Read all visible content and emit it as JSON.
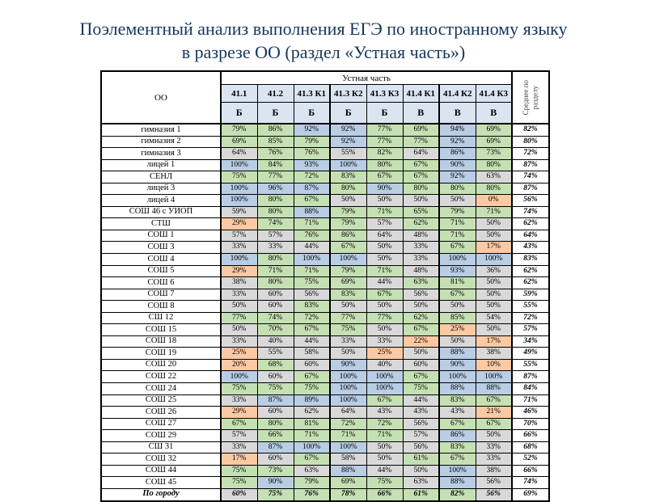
{
  "title": {
    "line1": "Поэлементный анализ выполнения ЕГЭ по иностранному языку",
    "line2": "в разрезе ОО (раздел «Устная часть»)"
  },
  "table": {
    "corner_label": "ОО",
    "group_header": "Устная часть",
    "avg_header": "Среднее по\nразделу",
    "columns": [
      "41.1",
      "41.2",
      "41.3 К1",
      "41.3 К2",
      "41.3 К3",
      "41.4 К1",
      "41.4 К2",
      "41.4 К3"
    ],
    "levels": [
      "Б",
      "Б",
      "Б",
      "Б",
      "Б",
      "В",
      "В",
      "В"
    ],
    "fill_colors": {
      "g": "#c5e0b3",
      "b": "#b9cde5",
      "y": "#d9d9d9",
      "o": "#fbc9a4",
      "w": "#ffffff"
    },
    "rows": [
      {
        "name": "гимназия 1",
        "values": [
          "79%",
          "86%",
          "92%",
          "92%",
          "77%",
          "69%",
          "94%",
          "69%"
        ],
        "fills": [
          "g",
          "g",
          "b",
          "b",
          "g",
          "g",
          "b",
          "g"
        ],
        "avg": "82%"
      },
      {
        "name": "гимназия 2",
        "values": [
          "69%",
          "85%",
          "79%",
          "92%",
          "77%",
          "77%",
          "92%",
          "69%"
        ],
        "fills": [
          "g",
          "g",
          "g",
          "b",
          "g",
          "g",
          "b",
          "g"
        ],
        "avg": "80%"
      },
      {
        "name": "гимназия 3",
        "values": [
          "64%",
          "76%",
          "76%",
          "55%",
          "82%",
          "64%",
          "86%",
          "73%"
        ],
        "fills": [
          "y",
          "g",
          "g",
          "y",
          "g",
          "y",
          "b",
          "g"
        ],
        "avg": "72%"
      },
      {
        "name": "лицей 1",
        "values": [
          "100%",
          "84%",
          "93%",
          "100%",
          "80%",
          "67%",
          "90%",
          "80%"
        ],
        "fills": [
          "b",
          "g",
          "b",
          "b",
          "g",
          "g",
          "b",
          "g"
        ],
        "avg": "87%"
      },
      {
        "name": "СЕНЛ",
        "values": [
          "75%",
          "77%",
          "72%",
          "83%",
          "67%",
          "67%",
          "92%",
          "63%"
        ],
        "fills": [
          "g",
          "g",
          "g",
          "g",
          "g",
          "g",
          "b",
          "y"
        ],
        "avg": "74%"
      },
      {
        "name": "лицей 3",
        "values": [
          "100%",
          "96%",
          "87%",
          "80%",
          "90%",
          "80%",
          "80%",
          "80%"
        ],
        "fills": [
          "b",
          "b",
          "b",
          "g",
          "b",
          "g",
          "g",
          "g"
        ],
        "avg": "87%"
      },
      {
        "name": "лицей 4",
        "values": [
          "100%",
          "80%",
          "67%",
          "50%",
          "50%",
          "50%",
          "50%",
          "0%"
        ],
        "fills": [
          "b",
          "g",
          "g",
          "y",
          "y",
          "y",
          "y",
          "o"
        ],
        "avg": "56%"
      },
      {
        "name": "СОШ 46 с УИОП",
        "values": [
          "59%",
          "80%",
          "88%",
          "79%",
          "71%",
          "65%",
          "79%",
          "71%"
        ],
        "fills": [
          "y",
          "g",
          "b",
          "g",
          "g",
          "g",
          "g",
          "g"
        ],
        "avg": "74%"
      },
      {
        "name": "СТШ",
        "values": [
          "29%",
          "74%",
          "71%",
          "79%",
          "57%",
          "62%",
          "71%",
          "50%"
        ],
        "fills": [
          "o",
          "g",
          "g",
          "g",
          "y",
          "g",
          "g",
          "y"
        ],
        "avg": "62%"
      },
      {
        "name": "СОШ 1",
        "values": [
          "57%",
          "57%",
          "76%",
          "86%",
          "64%",
          "48%",
          "71%",
          "50%"
        ],
        "fills": [
          "y",
          "y",
          "g",
          "g",
          "y",
          "y",
          "g",
          "y"
        ],
        "avg": "64%"
      },
      {
        "name": "СОШ 3",
        "values": [
          "33%",
          "33%",
          "44%",
          "67%",
          "50%",
          "33%",
          "67%",
          "17%"
        ],
        "fills": [
          "y",
          "y",
          "y",
          "g",
          "y",
          "y",
          "g",
          "o"
        ],
        "avg": "43%"
      },
      {
        "name": "СОШ 4",
        "values": [
          "100%",
          "80%",
          "100%",
          "100%",
          "50%",
          "33%",
          "100%",
          "100%"
        ],
        "fills": [
          "b",
          "g",
          "b",
          "b",
          "y",
          "y",
          "b",
          "b"
        ],
        "avg": "83%"
      },
      {
        "name": "СОШ 5",
        "values": [
          "29%",
          "71%",
          "71%",
          "79%",
          "71%",
          "48%",
          "93%",
          "36%"
        ],
        "fills": [
          "o",
          "g",
          "g",
          "g",
          "g",
          "y",
          "b",
          "y"
        ],
        "avg": "62%"
      },
      {
        "name": "СОШ 6",
        "values": [
          "38%",
          "80%",
          "75%",
          "69%",
          "44%",
          "63%",
          "81%",
          "50%"
        ],
        "fills": [
          "y",
          "g",
          "g",
          "g",
          "y",
          "g",
          "g",
          "y"
        ],
        "avg": "62%"
      },
      {
        "name": "СОШ 7",
        "values": [
          "33%",
          "60%",
          "56%",
          "83%",
          "67%",
          "56%",
          "67%",
          "50%"
        ],
        "fills": [
          "y",
          "y",
          "y",
          "g",
          "g",
          "y",
          "g",
          "y"
        ],
        "avg": "59%"
      },
      {
        "name": "СОШ 8",
        "values": [
          "50%",
          "60%",
          "83%",
          "50%",
          "50%",
          "50%",
          "50%",
          "50%"
        ],
        "fills": [
          "y",
          "y",
          "g",
          "y",
          "y",
          "y",
          "y",
          "y"
        ],
        "avg": "55%"
      },
      {
        "name": "СШ 12",
        "values": [
          "77%",
          "74%",
          "72%",
          "77%",
          "77%",
          "62%",
          "85%",
          "54%"
        ],
        "fills": [
          "g",
          "g",
          "g",
          "g",
          "g",
          "g",
          "g",
          "y"
        ],
        "avg": "72%"
      },
      {
        "name": "СОШ 15",
        "values": [
          "50%",
          "70%",
          "67%",
          "75%",
          "50%",
          "67%",
          "25%",
          "50%"
        ],
        "fills": [
          "y",
          "g",
          "g",
          "g",
          "y",
          "g",
          "o",
          "y"
        ],
        "avg": "57%"
      },
      {
        "name": "СОШ 18",
        "values": [
          "33%",
          "40%",
          "44%",
          "33%",
          "33%",
          "22%",
          "50%",
          "17%"
        ],
        "fills": [
          "y",
          "y",
          "y",
          "y",
          "y",
          "o",
          "y",
          "o"
        ],
        "avg": "34%"
      },
      {
        "name": "СОШ 19",
        "values": [
          "25%",
          "55%",
          "58%",
          "50%",
          "25%",
          "50%",
          "88%",
          "38%"
        ],
        "fills": [
          "o",
          "y",
          "y",
          "y",
          "o",
          "y",
          "b",
          "y"
        ],
        "avg": "49%"
      },
      {
        "name": "СОШ 20",
        "values": [
          "20%",
          "68%",
          "60%",
          "90%",
          "40%",
          "60%",
          "90%",
          "10%"
        ],
        "fills": [
          "o",
          "g",
          "y",
          "b",
          "y",
          "y",
          "b",
          "o"
        ],
        "avg": "55%"
      },
      {
        "name": "СОШ 22",
        "values": [
          "100%",
          "60%",
          "67%",
          "100%",
          "100%",
          "67%",
          "100%",
          "100%"
        ],
        "fills": [
          "b",
          "y",
          "g",
          "b",
          "b",
          "g",
          "b",
          "b"
        ],
        "avg": "87%"
      },
      {
        "name": "СОШ 24",
        "values": [
          "75%",
          "75%",
          "75%",
          "100%",
          "100%",
          "75%",
          "88%",
          "88%"
        ],
        "fills": [
          "g",
          "g",
          "g",
          "b",
          "b",
          "g",
          "b",
          "b"
        ],
        "avg": "84%"
      },
      {
        "name": "СОШ 25",
        "values": [
          "33%",
          "87%",
          "89%",
          "100%",
          "67%",
          "44%",
          "83%",
          "67%"
        ],
        "fills": [
          "y",
          "b",
          "b",
          "b",
          "g",
          "y",
          "g",
          "g"
        ],
        "avg": "71%"
      },
      {
        "name": "СОШ 26",
        "values": [
          "29%",
          "60%",
          "62%",
          "64%",
          "43%",
          "43%",
          "43%",
          "21%"
        ],
        "fills": [
          "o",
          "y",
          "y",
          "y",
          "y",
          "y",
          "y",
          "o"
        ],
        "avg": "46%"
      },
      {
        "name": "СОШ 27",
        "values": [
          "67%",
          "80%",
          "81%",
          "72%",
          "72%",
          "56%",
          "67%",
          "67%"
        ],
        "fills": [
          "g",
          "g",
          "g",
          "g",
          "g",
          "y",
          "g",
          "g"
        ],
        "avg": "70%"
      },
      {
        "name": "СОШ 29",
        "values": [
          "57%",
          "66%",
          "71%",
          "71%",
          "71%",
          "57%",
          "86%",
          "50%"
        ],
        "fills": [
          "y",
          "g",
          "g",
          "g",
          "g",
          "y",
          "b",
          "y"
        ],
        "avg": "66%"
      },
      {
        "name": "СШ 31",
        "values": [
          "33%",
          "87%",
          "100%",
          "100%",
          "50%",
          "56%",
          "83%",
          "33%"
        ],
        "fills": [
          "y",
          "b",
          "b",
          "b",
          "y",
          "y",
          "g",
          "y"
        ],
        "avg": "68%"
      },
      {
        "name": "СОШ 32",
        "values": [
          "17%",
          "60%",
          "67%",
          "58%",
          "50%",
          "61%",
          "67%",
          "33%"
        ],
        "fills": [
          "o",
          "y",
          "g",
          "y",
          "y",
          "g",
          "g",
          "y"
        ],
        "avg": "52%"
      },
      {
        "name": "СОШ 44",
        "values": [
          "75%",
          "73%",
          "63%",
          "88%",
          "44%",
          "50%",
          "100%",
          "38%"
        ],
        "fills": [
          "g",
          "g",
          "y",
          "b",
          "y",
          "y",
          "b",
          "y"
        ],
        "avg": "66%"
      },
      {
        "name": "СОШ 45",
        "values": [
          "75%",
          "90%",
          "79%",
          "69%",
          "75%",
          "63%",
          "88%",
          "56%"
        ],
        "fills": [
          "g",
          "b",
          "g",
          "g",
          "g",
          "y",
          "b",
          "y"
        ],
        "avg": "74%"
      }
    ],
    "total_row": {
      "name": "По городу",
      "values": [
        "60%",
        "75%",
        "76%",
        "78%",
        "66%",
        "61%",
        "82%",
        "56%"
      ],
      "fills": [
        "y",
        "g",
        "g",
        "g",
        "g",
        "g",
        "g",
        "y"
      ],
      "avg": "69%"
    },
    "title_color": "#17365d",
    "header_fill": "#dbe5f1"
  }
}
